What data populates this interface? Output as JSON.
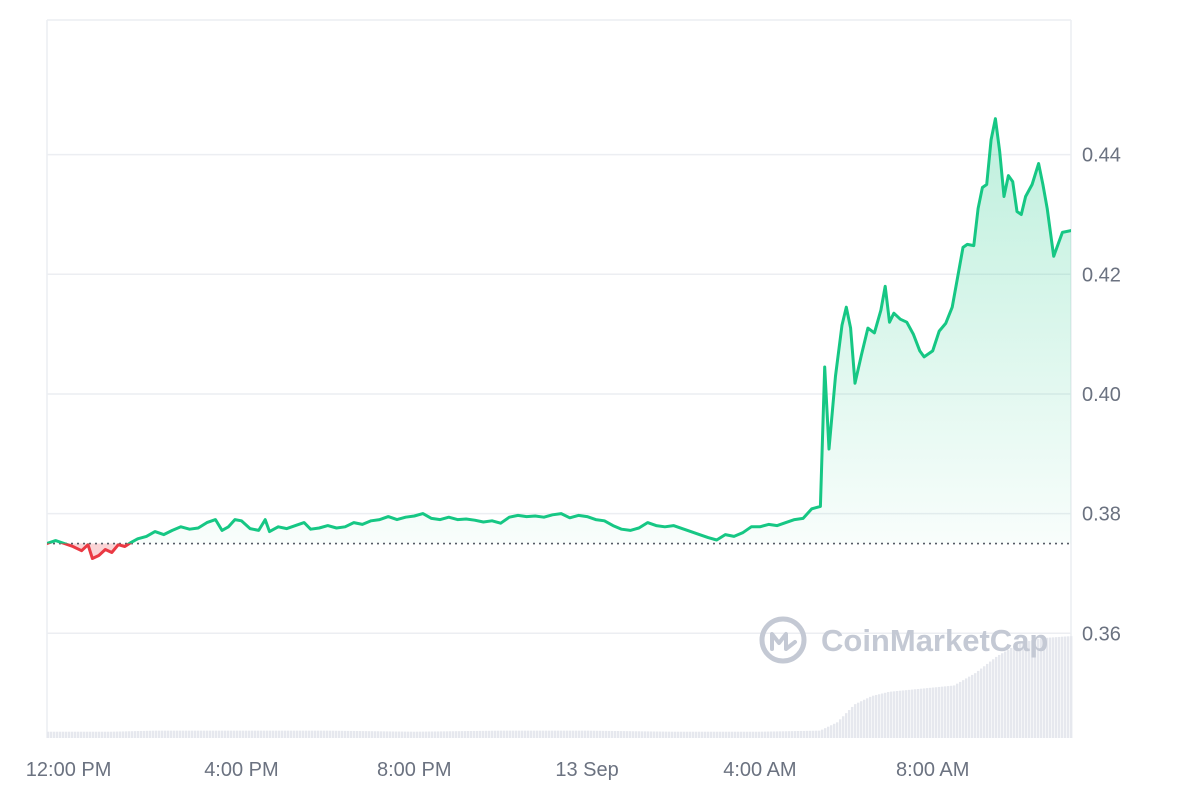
{
  "chart_data": {
    "type": "line",
    "title": "",
    "xlabel": "",
    "ylabel": "",
    "baseline": 0.375,
    "ylim": [
      0.3425,
      0.4625
    ],
    "xlim": [
      11.5,
      35.2
    ],
    "y_ticks": [
      {
        "value": 0.44,
        "label": "0.44"
      },
      {
        "value": 0.42,
        "label": "0.42"
      },
      {
        "value": 0.4,
        "label": "0.40"
      },
      {
        "value": 0.38,
        "label": "0.38"
      },
      {
        "value": 0.36,
        "label": "0.36"
      }
    ],
    "x_ticks": [
      {
        "value": 12,
        "label": "12:00 PM"
      },
      {
        "value": 16,
        "label": "4:00 PM"
      },
      {
        "value": 20,
        "label": "8:00 PM"
      },
      {
        "value": 24,
        "label": "13 Sep"
      },
      {
        "value": 28,
        "label": "4:00 AM"
      },
      {
        "value": 32,
        "label": "8:00 AM"
      }
    ],
    "x_unit": "hours from 12 Sep 00:00",
    "colors": {
      "up": "#16c784",
      "down": "#ea3943",
      "grid": "#eceef2",
      "tick_text": "#6b7280",
      "volume": "#e6e8ee",
      "watermark": "#c4c9d4"
    },
    "series": [
      {
        "values": [
          [
            11.5,
            0.375
          ],
          [
            11.7,
            0.3755
          ],
          [
            11.9,
            0.375
          ],
          [
            12.1,
            0.3745
          ],
          [
            12.3,
            0.3738
          ],
          [
            12.45,
            0.3748
          ],
          [
            12.55,
            0.3725
          ],
          [
            12.7,
            0.373
          ],
          [
            12.85,
            0.374
          ],
          [
            13.0,
            0.3735
          ],
          [
            13.15,
            0.3748
          ],
          [
            13.3,
            0.3745
          ],
          [
            13.45,
            0.3752
          ],
          [
            13.6,
            0.3758
          ],
          [
            13.8,
            0.3762
          ],
          [
            14.0,
            0.377
          ],
          [
            14.2,
            0.3765
          ],
          [
            14.4,
            0.3772
          ],
          [
            14.6,
            0.3778
          ],
          [
            14.8,
            0.3774
          ],
          [
            15.0,
            0.3776
          ],
          [
            15.2,
            0.3785
          ],
          [
            15.4,
            0.379
          ],
          [
            15.55,
            0.3772
          ],
          [
            15.7,
            0.3778
          ],
          [
            15.85,
            0.379
          ],
          [
            16.0,
            0.3788
          ],
          [
            16.2,
            0.3775
          ],
          [
            16.4,
            0.3772
          ],
          [
            16.55,
            0.379
          ],
          [
            16.65,
            0.377
          ],
          [
            16.85,
            0.3778
          ],
          [
            17.05,
            0.3775
          ],
          [
            17.25,
            0.378
          ],
          [
            17.45,
            0.3785
          ],
          [
            17.6,
            0.3774
          ],
          [
            17.8,
            0.3776
          ],
          [
            18.0,
            0.378
          ],
          [
            18.2,
            0.3776
          ],
          [
            18.4,
            0.3778
          ],
          [
            18.6,
            0.3785
          ],
          [
            18.8,
            0.3782
          ],
          [
            19.0,
            0.3788
          ],
          [
            19.2,
            0.379
          ],
          [
            19.4,
            0.3795
          ],
          [
            19.6,
            0.379
          ],
          [
            19.8,
            0.3794
          ],
          [
            20.0,
            0.3796
          ],
          [
            20.2,
            0.38
          ],
          [
            20.4,
            0.3792
          ],
          [
            20.6,
            0.379
          ],
          [
            20.8,
            0.3794
          ],
          [
            21.0,
            0.379
          ],
          [
            21.2,
            0.3791
          ],
          [
            21.4,
            0.3789
          ],
          [
            21.6,
            0.3786
          ],
          [
            21.8,
            0.3788
          ],
          [
            22.0,
            0.3784
          ],
          [
            22.2,
            0.3794
          ],
          [
            22.4,
            0.3797
          ],
          [
            22.6,
            0.3795
          ],
          [
            22.8,
            0.3796
          ],
          [
            23.0,
            0.3794
          ],
          [
            23.2,
            0.3798
          ],
          [
            23.4,
            0.38
          ],
          [
            23.6,
            0.3793
          ],
          [
            23.8,
            0.3797
          ],
          [
            24.0,
            0.3795
          ],
          [
            24.2,
            0.379
          ],
          [
            24.4,
            0.3788
          ],
          [
            24.6,
            0.378
          ],
          [
            24.8,
            0.3774
          ],
          [
            25.0,
            0.3772
          ],
          [
            25.2,
            0.3776
          ],
          [
            25.4,
            0.3785
          ],
          [
            25.6,
            0.378
          ],
          [
            25.8,
            0.3778
          ],
          [
            26.0,
            0.378
          ],
          [
            26.2,
            0.3775
          ],
          [
            26.4,
            0.377
          ],
          [
            26.6,
            0.3765
          ],
          [
            26.8,
            0.376
          ],
          [
            27.0,
            0.3756
          ],
          [
            27.2,
            0.3765
          ],
          [
            27.4,
            0.3762
          ],
          [
            27.6,
            0.3768
          ],
          [
            27.8,
            0.3778
          ],
          [
            28.0,
            0.3778
          ],
          [
            28.2,
            0.3782
          ],
          [
            28.4,
            0.378
          ],
          [
            28.6,
            0.3785
          ],
          [
            28.8,
            0.379
          ],
          [
            29.0,
            0.3792
          ],
          [
            29.2,
            0.3808
          ],
          [
            29.4,
            0.3812
          ],
          [
            29.5,
            0.4045
          ],
          [
            29.6,
            0.3908
          ],
          [
            29.75,
            0.403
          ],
          [
            29.9,
            0.4115
          ],
          [
            30.0,
            0.4145
          ],
          [
            30.1,
            0.411
          ],
          [
            30.2,
            0.4018
          ],
          [
            30.35,
            0.4065
          ],
          [
            30.5,
            0.411
          ],
          [
            30.65,
            0.4102
          ],
          [
            30.8,
            0.414
          ],
          [
            30.9,
            0.418
          ],
          [
            31.0,
            0.412
          ],
          [
            31.1,
            0.4135
          ],
          [
            31.25,
            0.4125
          ],
          [
            31.4,
            0.412
          ],
          [
            31.55,
            0.41
          ],
          [
            31.7,
            0.4072
          ],
          [
            31.8,
            0.4062
          ],
          [
            32.0,
            0.4072
          ],
          [
            32.15,
            0.4105
          ],
          [
            32.3,
            0.4118
          ],
          [
            32.45,
            0.4145
          ],
          [
            32.6,
            0.4205
          ],
          [
            32.7,
            0.4245
          ],
          [
            32.8,
            0.425
          ],
          [
            32.95,
            0.4248
          ],
          [
            33.05,
            0.431
          ],
          [
            33.15,
            0.4345
          ],
          [
            33.25,
            0.435
          ],
          [
            33.35,
            0.4425
          ],
          [
            33.45,
            0.446
          ],
          [
            33.55,
            0.4405
          ],
          [
            33.65,
            0.433
          ],
          [
            33.75,
            0.4365
          ],
          [
            33.85,
            0.4355
          ],
          [
            33.95,
            0.4305
          ],
          [
            34.05,
            0.43
          ],
          [
            34.15,
            0.433
          ],
          [
            34.3,
            0.435
          ],
          [
            34.45,
            0.4385
          ],
          [
            34.55,
            0.435
          ],
          [
            34.65,
            0.431
          ],
          [
            34.8,
            0.423
          ],
          [
            35.0,
            0.427
          ],
          [
            35.2,
            0.4273
          ]
        ]
      }
    ],
    "volume": [
      [
        11.5,
        0.06
      ],
      [
        13.0,
        0.06
      ],
      [
        14.0,
        0.07
      ],
      [
        16.0,
        0.07
      ],
      [
        18.0,
        0.07
      ],
      [
        20.0,
        0.06
      ],
      [
        22.0,
        0.07
      ],
      [
        24.0,
        0.07
      ],
      [
        26.0,
        0.06
      ],
      [
        28.0,
        0.06
      ],
      [
        29.4,
        0.07
      ],
      [
        29.8,
        0.15
      ],
      [
        30.2,
        0.32
      ],
      [
        30.6,
        0.4
      ],
      [
        31.0,
        0.44
      ],
      [
        31.5,
        0.46
      ],
      [
        32.0,
        0.48
      ],
      [
        32.5,
        0.5
      ],
      [
        33.0,
        0.62
      ],
      [
        33.5,
        0.78
      ],
      [
        34.0,
        0.9
      ],
      [
        34.5,
        0.95
      ],
      [
        35.2,
        0.97
      ]
    ]
  },
  "watermark": {
    "text": "CoinMarketCap",
    "icon": "coinmarketcap-logo"
  }
}
